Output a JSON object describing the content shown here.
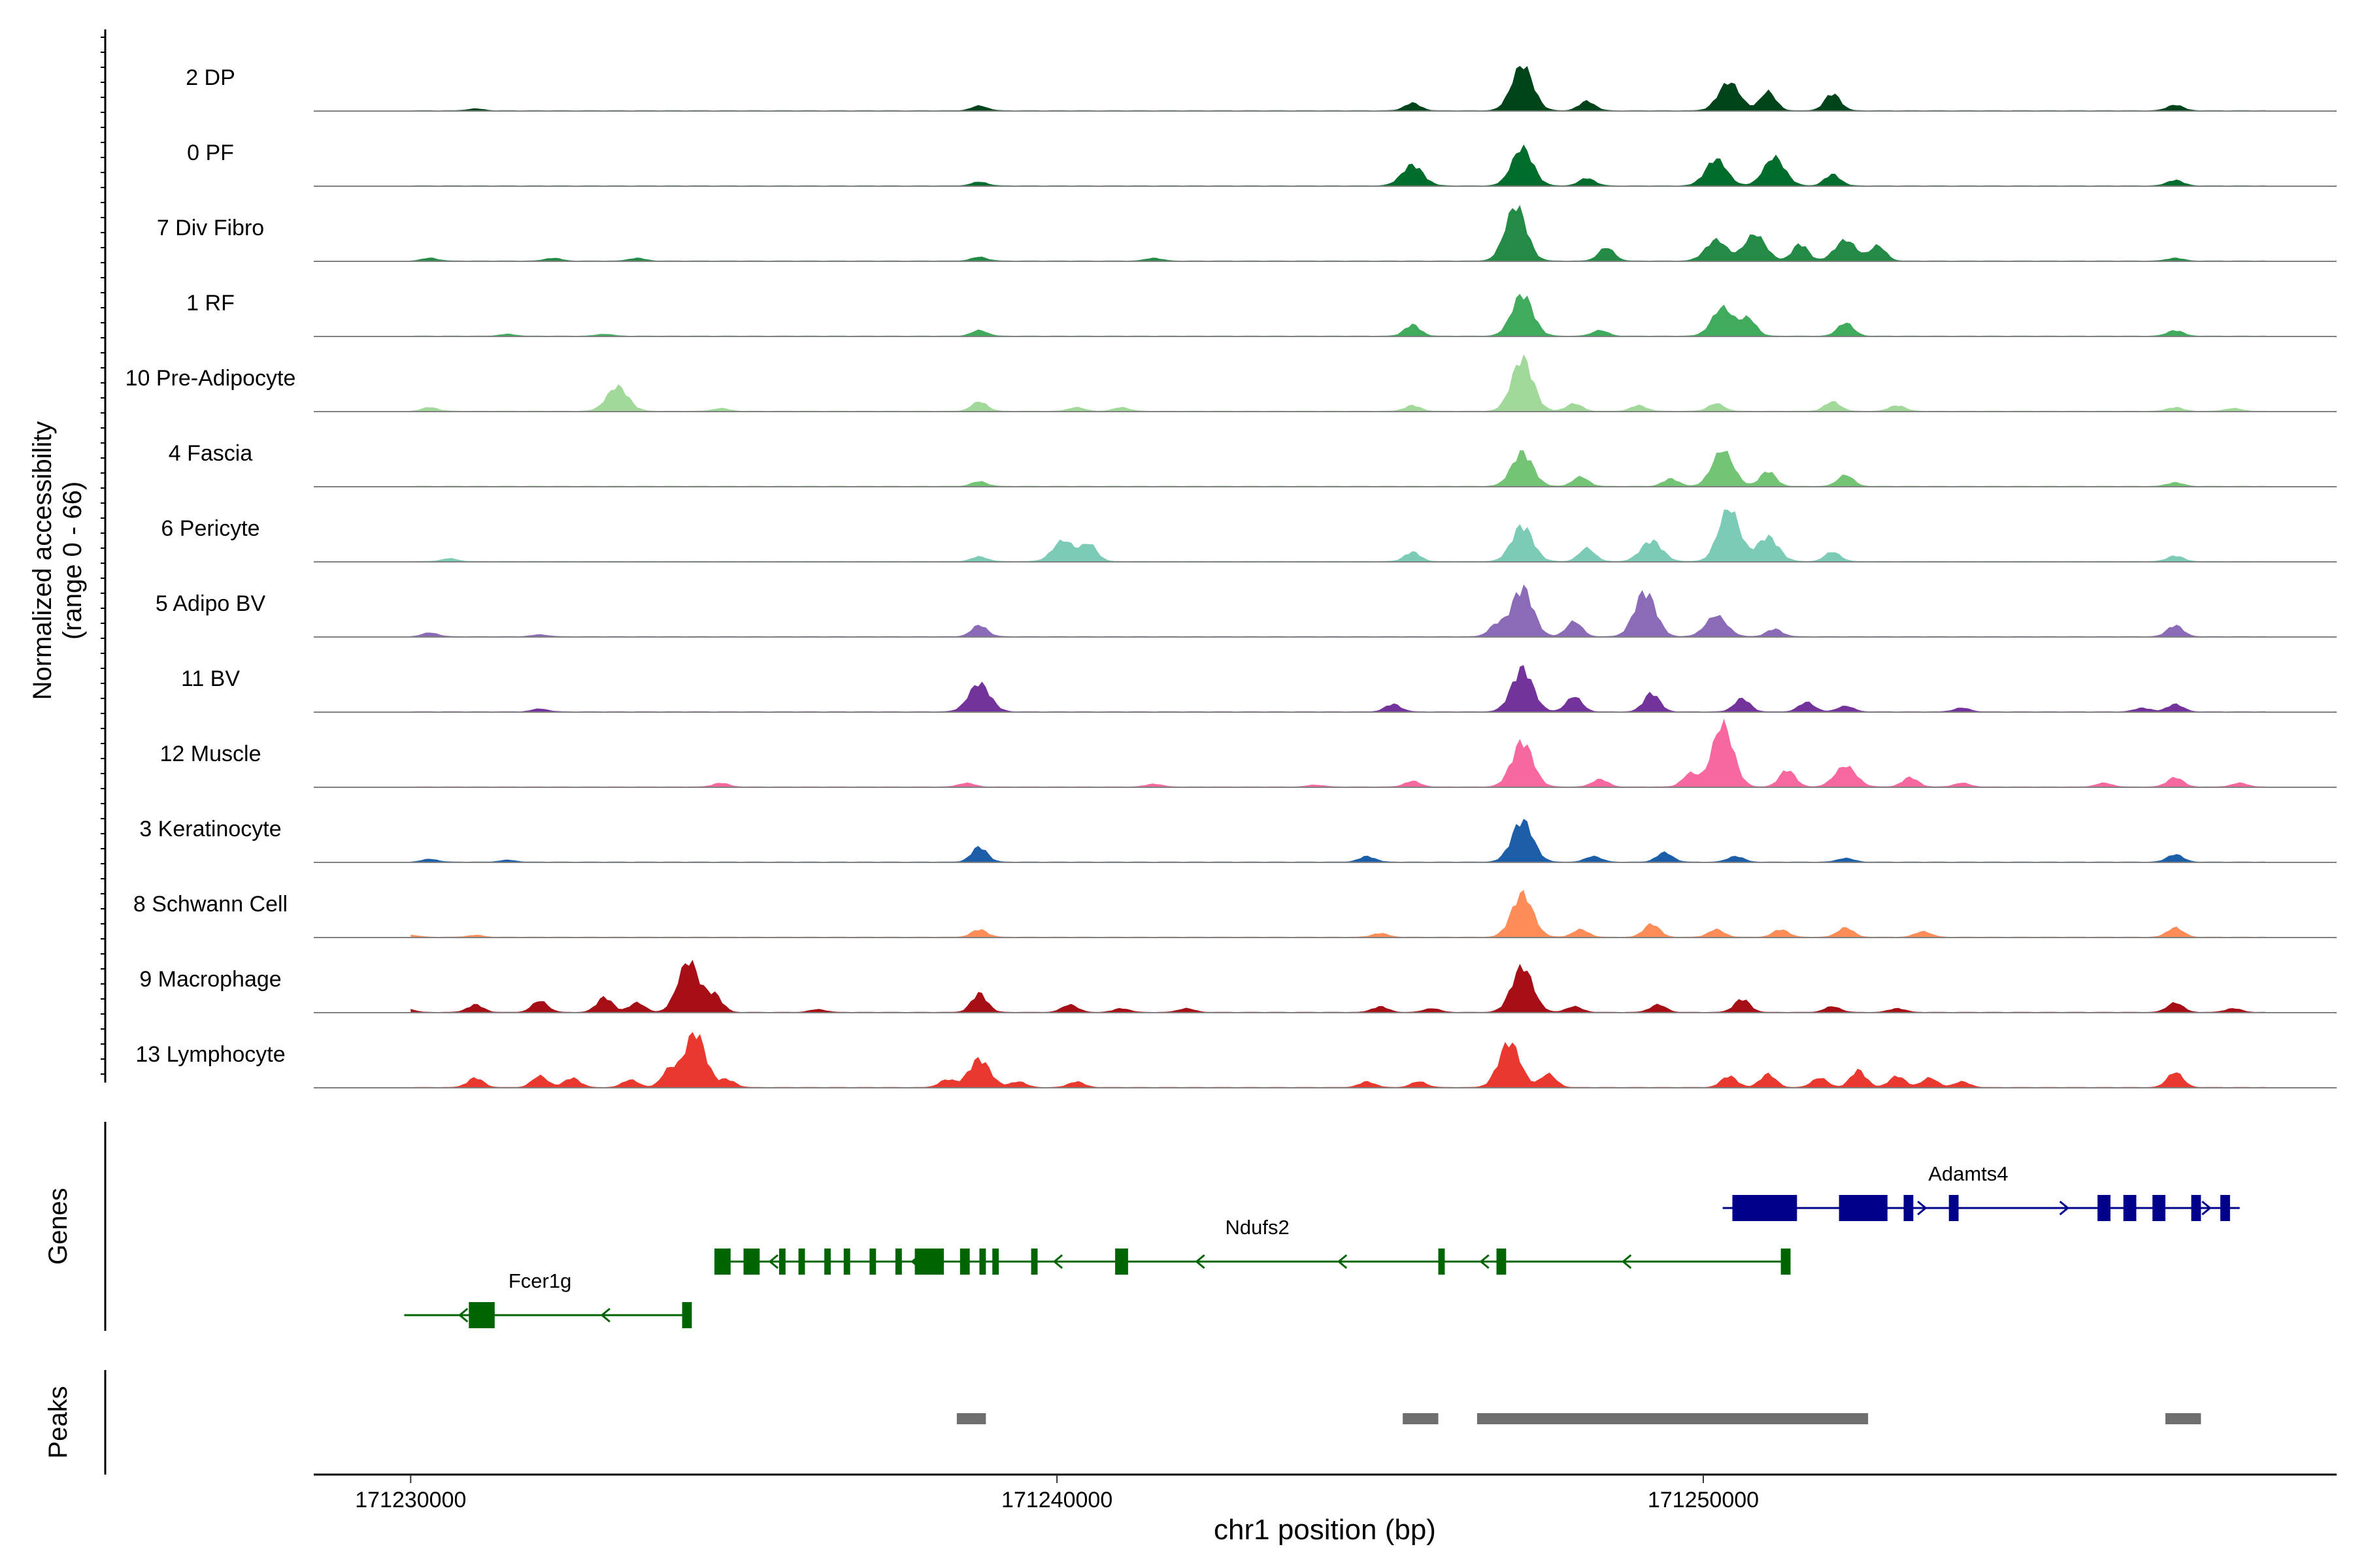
{
  "chart_data": {
    "type": "area",
    "title": "",
    "ylabel": "Normalized accessibility",
    "ylabel_range": "(range 0 - 66)",
    "y_range": [
      0,
      66
    ],
    "xlabel": "chr1 position (bp)",
    "xlim": [
      171228500,
      171259800
    ],
    "x_ticks": [
      171230000,
      171240000,
      171250000
    ],
    "x_tick_labels": [
      "171230000",
      "171240000",
      "171250000"
    ],
    "tracks": [
      {
        "name": "2 DP",
        "color": "#00441b",
        "peaks": [
          [
            171231000,
            2
          ],
          [
            171238800,
            5
          ],
          [
            171245500,
            8
          ],
          [
            171247200,
            48
          ],
          [
            171248200,
            10
          ],
          [
            171250400,
            30
          ],
          [
            171251000,
            20
          ],
          [
            171252000,
            18
          ],
          [
            171257300,
            6
          ]
        ]
      },
      {
        "name": "0 PF",
        "color": "#006d2c",
        "peaks": [
          [
            171238800,
            4
          ],
          [
            171245500,
            22
          ],
          [
            171247200,
            40
          ],
          [
            171248200,
            8
          ],
          [
            171250200,
            28
          ],
          [
            171251100,
            30
          ],
          [
            171252000,
            12
          ],
          [
            171257300,
            6
          ]
        ]
      },
      {
        "name": "7 Div Fibro",
        "color": "#238b45",
        "peaks": [
          [
            171230300,
            3
          ],
          [
            171232200,
            3
          ],
          [
            171233500,
            3
          ],
          [
            171238800,
            4
          ],
          [
            171241500,
            3
          ],
          [
            171247100,
            58
          ],
          [
            171248500,
            14
          ],
          [
            171250200,
            22
          ],
          [
            171250800,
            28
          ],
          [
            171251500,
            18
          ],
          [
            171252200,
            22
          ],
          [
            171252700,
            16
          ],
          [
            171257300,
            3
          ]
        ]
      },
      {
        "name": "1 RF",
        "color": "#41ab5d",
        "peaks": [
          [
            171231500,
            2
          ],
          [
            171233000,
            2
          ],
          [
            171238800,
            6
          ],
          [
            171245500,
            12
          ],
          [
            171247200,
            44
          ],
          [
            171248400,
            6
          ],
          [
            171250300,
            30
          ],
          [
            171250700,
            18
          ],
          [
            171252200,
            14
          ],
          [
            171257300,
            6
          ]
        ]
      },
      {
        "name": "10 Pre-Adipocyte",
        "color": "#a1d99b",
        "peaks": [
          [
            171230300,
            4
          ],
          [
            171233200,
            26
          ],
          [
            171234800,
            3
          ],
          [
            171238800,
            10
          ],
          [
            171240300,
            4
          ],
          [
            171241000,
            4
          ],
          [
            171245500,
            6
          ],
          [
            171247200,
            56
          ],
          [
            171248000,
            8
          ],
          [
            171249000,
            6
          ],
          [
            171250200,
            8
          ],
          [
            171252000,
            10
          ],
          [
            171253000,
            6
          ],
          [
            171257300,
            4
          ],
          [
            171258200,
            3
          ]
        ]
      },
      {
        "name": "4 Fascia",
        "color": "#74c476",
        "peaks": [
          [
            171238800,
            5
          ],
          [
            171247200,
            36
          ],
          [
            171248100,
            10
          ],
          [
            171249500,
            8
          ],
          [
            171250300,
            38
          ],
          [
            171251000,
            16
          ],
          [
            171252200,
            12
          ],
          [
            171257300,
            4
          ]
        ]
      },
      {
        "name": "6 Pericyte",
        "color": "#7bcbb6",
        "peaks": [
          [
            171230600,
            3
          ],
          [
            171238800,
            5
          ],
          [
            171240100,
            22
          ],
          [
            171240500,
            18
          ],
          [
            171245500,
            10
          ],
          [
            171247200,
            38
          ],
          [
            171248200,
            14
          ],
          [
            171249200,
            22
          ],
          [
            171250400,
            56
          ],
          [
            171251000,
            26
          ],
          [
            171252000,
            10
          ],
          [
            171257300,
            6
          ]
        ]
      },
      {
        "name": "5 Adipo BV",
        "color": "#8b6bb8",
        "peaks": [
          [
            171230300,
            4
          ],
          [
            171232000,
            2
          ],
          [
            171238800,
            12
          ],
          [
            171246800,
            12
          ],
          [
            171247200,
            52
          ],
          [
            171248000,
            16
          ],
          [
            171249100,
            48
          ],
          [
            171250200,
            22
          ],
          [
            171251100,
            8
          ],
          [
            171257300,
            12
          ]
        ]
      },
      {
        "name": "11 BV",
        "color": "#73339a",
        "peaks": [
          [
            171232000,
            3
          ],
          [
            171238800,
            30
          ],
          [
            171245200,
            8
          ],
          [
            171247200,
            46
          ],
          [
            171248000,
            16
          ],
          [
            171249200,
            20
          ],
          [
            171250600,
            14
          ],
          [
            171251600,
            10
          ],
          [
            171252200,
            6
          ],
          [
            171254000,
            4
          ],
          [
            171256800,
            4
          ],
          [
            171257300,
            8
          ]
        ]
      },
      {
        "name": "12 Muscle",
        "color": "#f768a1",
        "peaks": [
          [
            171234800,
            4
          ],
          [
            171238600,
            4
          ],
          [
            171241500,
            3
          ],
          [
            171244000,
            2
          ],
          [
            171245500,
            6
          ],
          [
            171247200,
            48
          ],
          [
            171248400,
            8
          ],
          [
            171249800,
            14
          ],
          [
            171250300,
            66
          ],
          [
            171251300,
            18
          ],
          [
            171252200,
            22
          ],
          [
            171253200,
            10
          ],
          [
            171254000,
            4
          ],
          [
            171256200,
            4
          ],
          [
            171257300,
            10
          ],
          [
            171258300,
            4
          ]
        ]
      },
      {
        "name": "3 Keratinocyte",
        "color": "#1c5ea8",
        "peaks": [
          [
            171230300,
            3
          ],
          [
            171231500,
            2
          ],
          [
            171238800,
            16
          ],
          [
            171244800,
            6
          ],
          [
            171247200,
            44
          ],
          [
            171248300,
            6
          ],
          [
            171249400,
            10
          ],
          [
            171250500,
            6
          ],
          [
            171252200,
            4
          ],
          [
            171257300,
            8
          ]
        ]
      },
      {
        "name": "8 Schwann Cell",
        "color": "#fc8d59",
        "peaks": [
          [
            171230000,
            2
          ],
          [
            171231000,
            2
          ],
          [
            171238800,
            8
          ],
          [
            171245000,
            4
          ],
          [
            171247200,
            46
          ],
          [
            171248100,
            8
          ],
          [
            171249200,
            14
          ],
          [
            171250200,
            8
          ],
          [
            171251200,
            8
          ],
          [
            171252200,
            10
          ],
          [
            171253400,
            6
          ],
          [
            171257300,
            10
          ]
        ]
      },
      {
        "name": "9 Macrophage",
        "color": "#a50f15",
        "peaks": [
          [
            171229900,
            5
          ],
          [
            171231000,
            8
          ],
          [
            171232000,
            12
          ],
          [
            171233000,
            16
          ],
          [
            171233500,
            10
          ],
          [
            171234300,
            54
          ],
          [
            171234700,
            18
          ],
          [
            171236300,
            3
          ],
          [
            171238800,
            20
          ],
          [
            171240200,
            8
          ],
          [
            171241000,
            4
          ],
          [
            171242000,
            4
          ],
          [
            171245000,
            6
          ],
          [
            171245800,
            4
          ],
          [
            171247200,
            48
          ],
          [
            171248000,
            6
          ],
          [
            171249300,
            8
          ],
          [
            171250600,
            14
          ],
          [
            171252000,
            6
          ],
          [
            171253000,
            4
          ],
          [
            171257300,
            10
          ],
          [
            171258200,
            4
          ]
        ]
      },
      {
        "name": "13 Lymphocyte",
        "color": "#e9392f",
        "peaks": [
          [
            171231000,
            10
          ],
          [
            171232000,
            12
          ],
          [
            171232500,
            10
          ],
          [
            171233400,
            8
          ],
          [
            171234000,
            18
          ],
          [
            171234400,
            58
          ],
          [
            171234900,
            8
          ],
          [
            171238300,
            8
          ],
          [
            171238800,
            30
          ],
          [
            171239400,
            6
          ],
          [
            171240300,
            6
          ],
          [
            171244800,
            6
          ],
          [
            171245600,
            6
          ],
          [
            171247000,
            48
          ],
          [
            171247600,
            14
          ],
          [
            171250400,
            12
          ],
          [
            171251000,
            14
          ],
          [
            171251800,
            10
          ],
          [
            171252400,
            18
          ],
          [
            171253000,
            12
          ],
          [
            171253500,
            10
          ],
          [
            171254000,
            6
          ],
          [
            171257300,
            16
          ]
        ]
      }
    ],
    "gene_panel_label": "Genes",
    "genes": [
      {
        "name": "Fcer1g",
        "color": "#006400",
        "strand": "-",
        "start": 171229900,
        "end": 171234300,
        "exons": [
          [
            171230900,
            171231300,
            "big"
          ],
          [
            171234200,
            171234350,
            "big"
          ]
        ]
      },
      {
        "name": "Ndufs2",
        "color": "#006400",
        "strand": "-",
        "start": 171234700,
        "end": 171251300,
        "exons": [
          [
            171234700,
            171234950,
            "big"
          ],
          [
            171235150,
            171235400,
            "big"
          ],
          [
            171235700,
            171235800,
            "small"
          ],
          [
            171236000,
            171236100,
            "small"
          ],
          [
            171236400,
            171236500,
            "small"
          ],
          [
            171236700,
            171236800,
            "small"
          ],
          [
            171237100,
            171237200,
            "small"
          ],
          [
            171237500,
            171237600,
            "small"
          ],
          [
            171237800,
            171238250,
            "big"
          ],
          [
            171238500,
            171238650,
            "small"
          ],
          [
            171238800,
            171238900,
            "small"
          ],
          [
            171239000,
            171239100,
            "small"
          ],
          [
            171239600,
            171239700,
            "small"
          ],
          [
            171240900,
            171241100,
            "small"
          ],
          [
            171245900,
            171246000,
            "small"
          ],
          [
            171246800,
            171246950,
            "small"
          ],
          [
            171251200,
            171251350,
            "small"
          ]
        ]
      },
      {
        "name": "Adamts4",
        "color": "#00008b",
        "strand": "+",
        "start": 171250300,
        "end": 171258300,
        "exons": [
          [
            171250450,
            171251450,
            "big"
          ],
          [
            171252100,
            171252850,
            "big"
          ],
          [
            171253100,
            171253250,
            "small"
          ],
          [
            171253800,
            171253950,
            "small"
          ],
          [
            171256100,
            171256300,
            "small"
          ],
          [
            171256500,
            171256700,
            "small"
          ],
          [
            171256950,
            171257150,
            "small"
          ],
          [
            171257550,
            171257700,
            "small"
          ],
          [
            171258000,
            171258150,
            "small"
          ]
        ]
      }
    ],
    "peaks_panel_label": "Peaks",
    "peak_regions": [
      [
        171238450,
        171238900
      ],
      [
        171245350,
        171245900
      ],
      [
        171246500,
        171252550
      ],
      [
        171257150,
        171257700
      ]
    ]
  }
}
